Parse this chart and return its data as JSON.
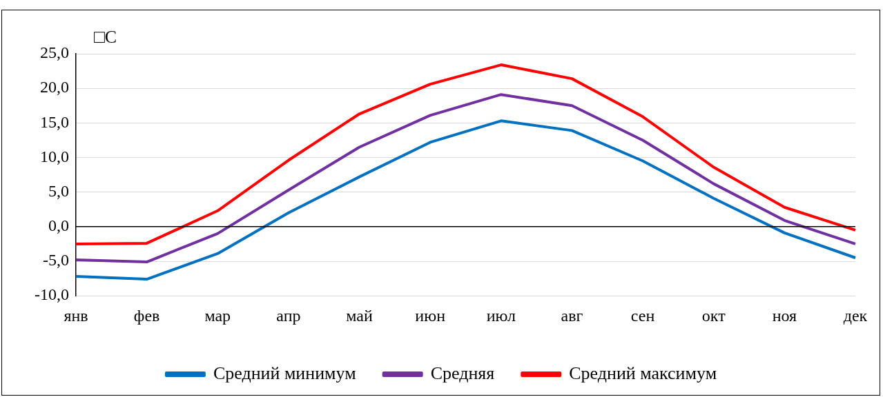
{
  "chart_data": {
    "type": "line",
    "ylabel": "□C",
    "categories": [
      "янв",
      "фев",
      "мар",
      "апр",
      "май",
      "июн",
      "июл",
      "авг",
      "сен",
      "окт",
      "ноя",
      "дек"
    ],
    "series": [
      {
        "name": "Средний минимум",
        "color": "#0070c0",
        "values": [
          -7.2,
          -7.6,
          -3.9,
          2.0,
          7.2,
          12.2,
          15.3,
          13.9,
          9.5,
          4.1,
          -0.9,
          -4.5
        ]
      },
      {
        "name": "Средняя",
        "color": "#7030a0",
        "values": [
          -4.8,
          -5.1,
          -1.0,
          5.3,
          11.5,
          16.1,
          19.1,
          17.5,
          12.5,
          6.2,
          0.9,
          -2.5
        ]
      },
      {
        "name": "Средний максимум",
        "color": "#ff0000",
        "values": [
          -2.5,
          -2.4,
          2.3,
          9.6,
          16.3,
          20.6,
          23.4,
          21.4,
          15.9,
          8.6,
          2.8,
          -0.5
        ]
      }
    ],
    "ylim": [
      -10,
      25
    ],
    "yticks": [
      {
        "value": -10,
        "label": "-10,0"
      },
      {
        "value": -5,
        "label": "-5,0"
      },
      {
        "value": 0,
        "label": "0,0"
      },
      {
        "value": 5,
        "label": "5,0"
      },
      {
        "value": 10,
        "label": "10,0"
      },
      {
        "value": 15,
        "label": "15,0"
      },
      {
        "value": 20,
        "label": "20,0"
      },
      {
        "value": 25,
        "label": "25,0"
      }
    ],
    "ref_lines": [
      {
        "axis": "y",
        "value": 0,
        "color": "#000000"
      }
    ],
    "grid": "y",
    "legend": "bottom",
    "marker": "none",
    "line_style": "solid"
  }
}
